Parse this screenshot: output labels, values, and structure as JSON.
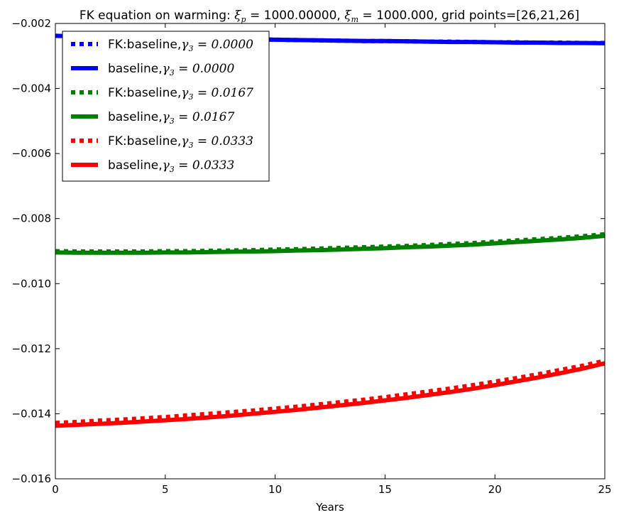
{
  "chart_data": {
    "type": "line",
    "title": {
      "prefix": "FK equation on warming: ",
      "xi_p_value": "1000.00000",
      "xi_m_value": "1000.000",
      "suffix": ", grid points=[26,21,26]"
    },
    "xlabel": "Years",
    "ylabel": "",
    "xlim": [
      0,
      25
    ],
    "ylim": [
      -0.016,
      -0.002
    ],
    "x_ticks": [
      0,
      5,
      10,
      15,
      20,
      25
    ],
    "x_tick_labels": [
      "0",
      "5",
      "10",
      "15",
      "20",
      "25"
    ],
    "y_ticks": [
      -0.016,
      -0.014,
      -0.012,
      -0.01,
      -0.008,
      -0.006,
      -0.004,
      -0.002
    ],
    "y_tick_labels": [
      "−0.016",
      "−0.014",
      "−0.012",
      "−0.010",
      "−0.008",
      "−0.006",
      "−0.004",
      "−0.002"
    ],
    "grid": false,
    "legend_position": "top-left",
    "x": [
      0,
      1,
      2,
      3,
      4,
      5,
      6,
      7,
      8,
      9,
      10,
      11,
      12,
      13,
      14,
      15,
      16,
      17,
      18,
      19,
      20,
      21,
      22,
      23,
      24,
      25
    ],
    "series": [
      {
        "name_prefix": "FK:baseline,",
        "gamma": "0.0000",
        "color": "#0000ff",
        "style": "dotted",
        "values": [
          -0.00238,
          -0.0024,
          -0.00241,
          -0.00243,
          -0.00244,
          -0.00245,
          -0.00246,
          -0.00247,
          -0.00248,
          -0.00249,
          -0.0025,
          -0.00251,
          -0.00252,
          -0.00253,
          -0.00254,
          -0.00254,
          -0.00255,
          -0.00256,
          -0.00256,
          -0.00257,
          -0.00258,
          -0.00258,
          -0.00259,
          -0.00259,
          -0.0026,
          -0.0026
        ]
      },
      {
        "name_prefix": "baseline,",
        "gamma": "0.0000",
        "color": "#0000ff",
        "style": "solid",
        "values": [
          -0.00238,
          -0.0024,
          -0.00241,
          -0.00243,
          -0.00244,
          -0.00245,
          -0.00246,
          -0.00247,
          -0.00248,
          -0.00249,
          -0.0025,
          -0.00251,
          -0.00252,
          -0.00253,
          -0.00254,
          -0.00254,
          -0.00255,
          -0.00256,
          -0.00257,
          -0.00257,
          -0.00258,
          -0.00259,
          -0.00259,
          -0.0026,
          -0.0026,
          -0.00261
        ]
      },
      {
        "name_prefix": "FK:baseline,",
        "gamma": "0.0167",
        "color": "#008000",
        "style": "dotted",
        "values": [
          -0.009,
          -0.00901,
          -0.00901,
          -0.00901,
          -0.00901,
          -0.009,
          -0.009,
          -0.00899,
          -0.00898,
          -0.00897,
          -0.00895,
          -0.00894,
          -0.00892,
          -0.0089,
          -0.00888,
          -0.00886,
          -0.00884,
          -0.00881,
          -0.00878,
          -0.00875,
          -0.00871,
          -0.00867,
          -0.00863,
          -0.00859,
          -0.00854,
          -0.00848
        ]
      },
      {
        "name_prefix": "baseline,",
        "gamma": "0.0167",
        "color": "#008000",
        "style": "solid",
        "values": [
          -0.00904,
          -0.00905,
          -0.00905,
          -0.00905,
          -0.00905,
          -0.00904,
          -0.00904,
          -0.00903,
          -0.00902,
          -0.00901,
          -0.009,
          -0.00898,
          -0.00897,
          -0.00895,
          -0.00893,
          -0.00891,
          -0.00888,
          -0.00886,
          -0.00883,
          -0.0088,
          -0.00876,
          -0.00872,
          -0.00868,
          -0.00864,
          -0.00859,
          -0.00853
        ]
      },
      {
        "name_prefix": "FK:baseline,",
        "gamma": "0.0333",
        "color": "#ff0000",
        "style": "dotted",
        "values": [
          -0.01428,
          -0.01425,
          -0.01421,
          -0.01418,
          -0.01414,
          -0.0141,
          -0.01405,
          -0.014,
          -0.01395,
          -0.0139,
          -0.01384,
          -0.01378,
          -0.01371,
          -0.01364,
          -0.01357,
          -0.01349,
          -0.0134,
          -0.01331,
          -0.01322,
          -0.01312,
          -0.01301,
          -0.0129,
          -0.01278,
          -0.01265,
          -0.01252,
          -0.01237
        ]
      },
      {
        "name_prefix": "baseline,",
        "gamma": "0.0333",
        "color": "#ff0000",
        "style": "solid",
        "values": [
          -0.01437,
          -0.01434,
          -0.01431,
          -0.01428,
          -0.01424,
          -0.0142,
          -0.01416,
          -0.01411,
          -0.01406,
          -0.014,
          -0.01394,
          -0.01388,
          -0.01381,
          -0.01374,
          -0.01367,
          -0.01359,
          -0.01351,
          -0.01342,
          -0.01333,
          -0.01323,
          -0.01312,
          -0.013,
          -0.01288,
          -0.01275,
          -0.01261,
          -0.01245
        ]
      }
    ]
  }
}
